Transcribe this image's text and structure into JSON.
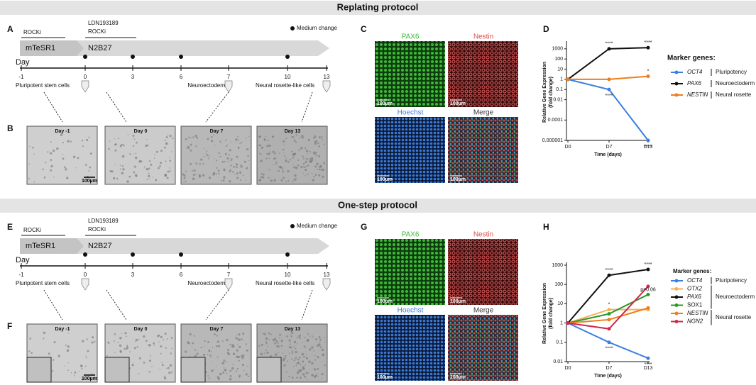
{
  "sections": [
    {
      "title": "Replating protocol",
      "letters": [
        "A",
        "B",
        "C",
        "D"
      ],
      "timeline": {
        "rocki_1": "ROCKi",
        "ldn": "LDN193189",
        "rocki_2": "ROCKi",
        "medium_1": "mTeSR1",
        "medium_2": "N2B27",
        "medium_change": "Medium change",
        "day_label": "Day",
        "days": [
          "-1",
          "0",
          "3",
          "6",
          "7",
          "10",
          "13"
        ],
        "stages": [
          "Pluripotent stem cells",
          "Neuroectoderm",
          "Neural rosette-like cells"
        ]
      },
      "brightfield": [
        "Day -1",
        "Day 0",
        "Day 7",
        "Day 13"
      ],
      "scale_bar": "100µm",
      "stains": [
        "PAX6",
        "Nestin",
        "Hoechst",
        "Merge"
      ]
    },
    {
      "title": "One-step protocol",
      "letters": [
        "E",
        "F",
        "G",
        "H"
      ],
      "timeline": {
        "rocki_1": "ROCKi",
        "ldn": "LDN193189",
        "rocki_2": "ROCKi",
        "medium_1": "mTeSR1",
        "medium_2": "N2B27",
        "medium_change": "Medium change",
        "day_label": "Day",
        "days": [
          "-1",
          "0",
          "3",
          "6",
          "7",
          "10",
          "13"
        ],
        "stages": [
          "Pluripotent stem cells",
          "Neuroectoderm",
          "Neural rosette-like cells"
        ]
      },
      "brightfield": [
        "Day -1",
        "Day 0",
        "Day 7",
        "Day 13"
      ],
      "scale_bar": "100µm",
      "stains": [
        "PAX6",
        "Nestin",
        "Hoechst",
        "Merge"
      ]
    }
  ],
  "chart_data": [
    {
      "type": "line",
      "ylabel": [
        "Relative Gene Expression",
        "(fold change)"
      ],
      "xlabel": "Time (days)",
      "log_scale": true,
      "categories": [
        "D0",
        "D7",
        "D13"
      ],
      "ylim": [
        1e-06,
        3000
      ],
      "yticks": [
        1e-06,
        0.0001,
        0.01,
        0.1,
        1,
        10,
        100,
        1000
      ],
      "legend_title": "Marker genes:",
      "legend_groups": [
        "Pluripotency",
        "Neuroectoderm",
        "Neural rosette"
      ],
      "series": [
        {
          "name": "OCT4",
          "italic": true,
          "color": "#3a7fe0",
          "values": [
            1,
            0.1,
            1e-06
          ]
        },
        {
          "name": "PAX6",
          "italic": true,
          "color": "#111111",
          "values": [
            1,
            1000,
            1300
          ]
        },
        {
          "name": "NESTIN",
          "italic": true,
          "color": "#f07c1a",
          "values": [
            1,
            1,
            2
          ]
        }
      ],
      "annotations": [
        {
          "text": "****",
          "x": "D7",
          "series": "PAX6"
        },
        {
          "text": "****",
          "x": "D13",
          "series": "PAX6"
        },
        {
          "text": "*",
          "x": "D13",
          "series": "NESTIN"
        },
        {
          "text": "****",
          "x": "D7",
          "series": "OCT4"
        },
        {
          "text": "****",
          "x": "D13",
          "series": "OCT4"
        }
      ]
    },
    {
      "type": "line",
      "ylabel": [
        "Relative Gene Expression",
        "(fold change)"
      ],
      "xlabel": "Time (days)",
      "log_scale": true,
      "categories": [
        "D0",
        "D7",
        "D13"
      ],
      "ylim": [
        0.01,
        1000
      ],
      "yticks": [
        0.01,
        0.1,
        1,
        10,
        100,
        1000
      ],
      "legend_title": "Marker genes:",
      "legend_groups": [
        "Pluripotency",
        "Neuroectoderm",
        "Neural rosette"
      ],
      "series": [
        {
          "name": "OCT4",
          "italic": true,
          "color": "#3a7fe0",
          "values": [
            1,
            0.1,
            0.015
          ]
        },
        {
          "name": "OTX2",
          "italic": true,
          "color": "#f5b05a",
          "values": [
            1,
            5,
            5
          ]
        },
        {
          "name": "PAX6",
          "italic": true,
          "color": "#111111",
          "values": [
            1,
            300,
            600
          ]
        },
        {
          "name": "SOX1",
          "italic": false,
          "color": "#2a9a2a",
          "values": [
            1,
            3,
            30
          ]
        },
        {
          "name": "NESTIN",
          "italic": true,
          "color": "#f07c1a",
          "values": [
            1,
            1.5,
            6
          ]
        },
        {
          "name": "NGN2",
          "italic": true,
          "color": "#d0284a",
          "values": [
            1,
            0.5,
            80
          ]
        }
      ],
      "annotations": [
        {
          "text": "****",
          "x": "D7",
          "series": "PAX6"
        },
        {
          "text": "****",
          "x": "D13",
          "series": "PAX6"
        },
        {
          "text": "*",
          "x": "D7",
          "series": "OTX2"
        },
        {
          "text": "****",
          "x": "D7",
          "series": "OCT4"
        },
        {
          "text": "****",
          "x": "D13",
          "series": "OCT4"
        },
        {
          "text": "p=0.06",
          "x": "D13",
          "series": "SOX1"
        }
      ]
    }
  ]
}
